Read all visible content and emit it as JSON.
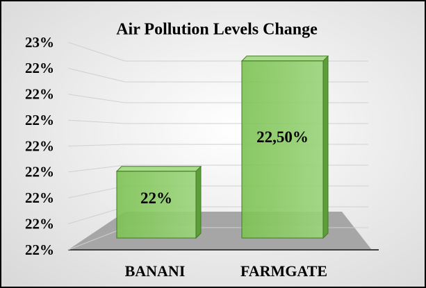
{
  "chart_data": {
    "type": "bar3d",
    "title": "Air Pollution Levels Change",
    "categories": [
      "BANANI",
      "FARMGATE"
    ],
    "values": [
      22,
      22.5
    ],
    "value_labels": [
      "22%",
      "22,50%"
    ],
    "color": "#8fcf6a",
    "ylim": [
      21.6,
      22.6
    ],
    "yticks": [
      {
        "value": 21.6,
        "label": "22%"
      },
      {
        "value": 21.725,
        "label": "22%"
      },
      {
        "value": 21.85,
        "label": "22%"
      },
      {
        "value": 21.975,
        "label": "22%"
      },
      {
        "value": 22.1,
        "label": "22%"
      },
      {
        "value": 22.225,
        "label": "22%"
      },
      {
        "value": 22.35,
        "label": "22%"
      },
      {
        "value": 22.475,
        "label": "22%"
      },
      {
        "value": 22.6,
        "label": "23%"
      }
    ],
    "grid": true
  }
}
